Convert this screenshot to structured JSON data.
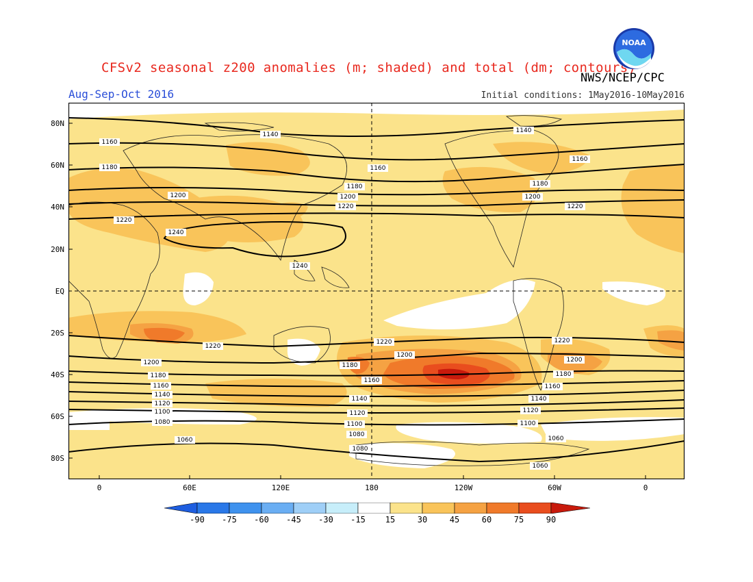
{
  "title": "CFSv2 seasonal z200 anomalies (m; shaded) and total (dm; contours)",
  "agency": "NWS/NCEP/CPC",
  "logo_text": "NOAA",
  "season": "Aug-Sep-Oct 2016",
  "initial_conditions": "Initial conditions: 1May2016-10May2016",
  "lat_labels": [
    "80N",
    "60N",
    "40N",
    "20N",
    "EQ",
    "20S",
    "40S",
    "60S",
    "80S"
  ],
  "lon_labels": [
    "0",
    "60E",
    "120E",
    "180",
    "120W",
    "60W",
    "0"
  ],
  "colorbar_labels": [
    "-90",
    "-75",
    "-60",
    "-45",
    "-30",
    "-15",
    "15",
    "30",
    "45",
    "60",
    "75",
    "90"
  ],
  "colors": {
    "title": "#e8281e",
    "season": "#2a4ed8",
    "yellow": "#fbe38b",
    "light_orange": "#f9c45a",
    "orange": "#f5a243",
    "dark_orange": "#f07a2a",
    "red_orange": "#e94d1e",
    "red": "#c81a0c"
  },
  "contour_labels": {
    "c1060": "1060",
    "c1080": "1080",
    "c1100": "1100",
    "c1120": "1120",
    "c1140": "1140",
    "c1160": "1160",
    "c1180": "1180",
    "c1200": "1200",
    "c1220": "1220",
    "c1240": "1240"
  }
}
